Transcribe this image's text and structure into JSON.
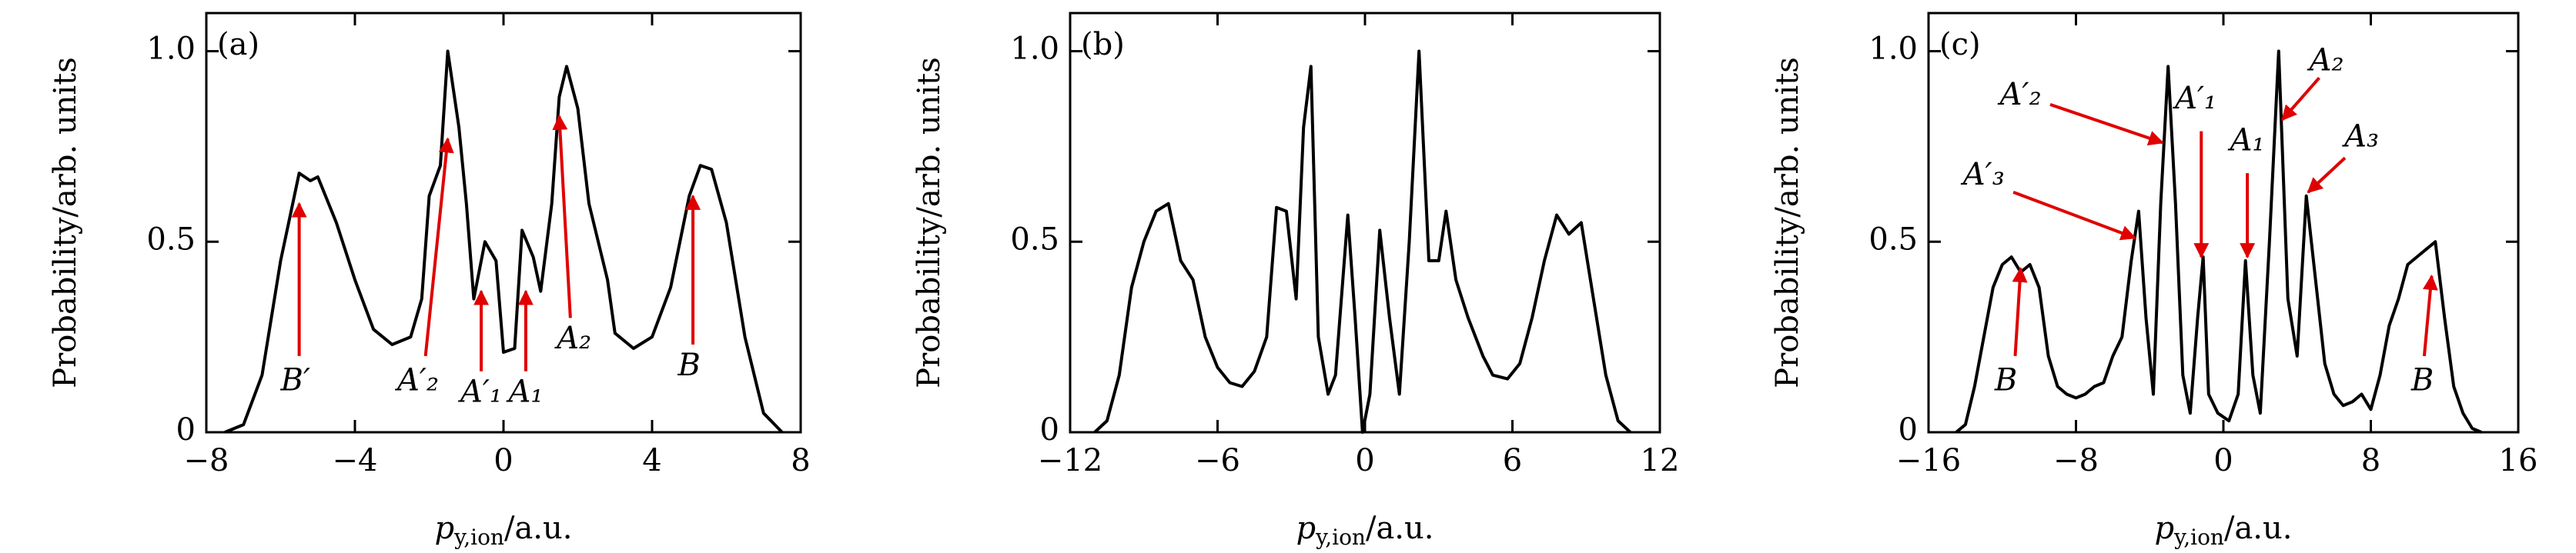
{
  "chart_data": [
    {
      "type": "line",
      "panel_label": "(a)",
      "y_label": "Probability/arb. units",
      "x_label": {
        "symbol": "p",
        "subscript": "y,ion",
        "unit": "/a.u."
      },
      "color": "#000000",
      "x": [
        -7.5,
        -7,
        -6.5,
        -6,
        -5.5,
        -5.2,
        -5,
        -4.5,
        -4,
        -3.5,
        -3,
        -2.5,
        -2.2,
        -2,
        -1.7,
        -1.5,
        -1.2,
        -1,
        -0.8,
        -0.5,
        -0.2,
        0,
        0.3,
        0.5,
        0.8,
        1,
        1.3,
        1.5,
        1.7,
        2,
        2.3,
        2.8,
        3,
        3.5,
        4,
        4.5,
        5,
        5.3,
        5.6,
        6,
        6.5,
        7,
        7.5
      ],
      "values": [
        0,
        0.02,
        0.15,
        0.45,
        0.68,
        0.66,
        0.67,
        0.55,
        0.4,
        0.27,
        0.23,
        0.25,
        0.35,
        0.62,
        0.7,
        1.0,
        0.8,
        0.6,
        0.35,
        0.5,
        0.45,
        0.21,
        0.22,
        0.53,
        0.46,
        0.37,
        0.6,
        0.88,
        0.96,
        0.85,
        0.6,
        0.4,
        0.26,
        0.22,
        0.25,
        0.38,
        0.62,
        0.7,
        0.69,
        0.55,
        0.25,
        0.05,
        0
      ],
      "xlim": [
        -8,
        8
      ],
      "ylim": [
        0,
        1.1
      ],
      "xticks": [
        {
          "value": -8,
          "label": "−8"
        },
        {
          "value": -4,
          "label": "−4"
        },
        0,
        4,
        8
      ],
      "yticks": [
        0,
        0.5,
        {
          "value": 1,
          "label": "1.0"
        }
      ],
      "annotations": [
        {
          "text": "B′",
          "arrow_color": "#e00000"
        },
        {
          "text": "A′₂",
          "arrow_color": "#e00000"
        },
        {
          "text": "A′₁",
          "arrow_color": "#e00000"
        },
        {
          "text": "A₁",
          "arrow_color": "#e00000"
        },
        {
          "text": "A₂",
          "arrow_color": "#e00000"
        },
        {
          "text": "B",
          "arrow_color": "#e00000"
        }
      ]
    },
    {
      "type": "line",
      "panel_label": "(b)",
      "y_label": "Probability/arb. units",
      "x_label": {
        "symbol": "p",
        "subscript": "y,ion",
        "unit": "/a.u."
      },
      "color": "#000000",
      "x": [
        -11,
        -10.5,
        -10,
        -9.5,
        -9,
        -8.5,
        -8,
        -7.5,
        -7,
        -6.5,
        -6,
        -5.5,
        -5,
        -4.5,
        -4,
        -3.6,
        -3.2,
        -2.8,
        -2.5,
        -2.2,
        -1.9,
        -1.5,
        -1.2,
        -0.7,
        -0.4,
        -0.1,
        0.2,
        0.6,
        1,
        1.4,
        1.8,
        2.2,
        2.6,
        3,
        3.3,
        3.7,
        4.2,
        4.8,
        5.2,
        5.8,
        6.3,
        6.8,
        7.3,
        7.8,
        8.3,
        8.8,
        9.3,
        9.8,
        10.3,
        10.8
      ],
      "values": [
        0,
        0.03,
        0.15,
        0.38,
        0.5,
        0.58,
        0.6,
        0.45,
        0.4,
        0.25,
        0.17,
        0.13,
        0.12,
        0.16,
        0.25,
        0.59,
        0.58,
        0.35,
        0.8,
        0.96,
        0.25,
        0.1,
        0.15,
        0.57,
        0.3,
        0,
        0.1,
        0.53,
        0.3,
        0.1,
        0.5,
        1.0,
        0.45,
        0.45,
        0.58,
        0.4,
        0.3,
        0.2,
        0.15,
        0.14,
        0.18,
        0.3,
        0.45,
        0.57,
        0.52,
        0.55,
        0.35,
        0.15,
        0.03,
        0
      ],
      "xlim": [
        -12,
        12
      ],
      "ylim": [
        0,
        1.1
      ],
      "xticks": [
        {
          "value": -12,
          "label": "−12"
        },
        {
          "value": -6,
          "label": "−6"
        },
        0,
        6,
        12
      ],
      "yticks": [
        0,
        0.5,
        {
          "value": 1,
          "label": "1.0"
        }
      ],
      "annotations": []
    },
    {
      "type": "line",
      "panel_label": "(c)",
      "y_label": "Probability/arb. units",
      "x_label": {
        "symbol": "p",
        "subscript": "y,ion",
        "unit": "/a.u."
      },
      "color": "#000000",
      "x": [
        -14.5,
        -14,
        -13.5,
        -13,
        -12.5,
        -12,
        -11.5,
        -11,
        -10.5,
        -10,
        -9.5,
        -9,
        -8.5,
        -8,
        -7.5,
        -7,
        -6.5,
        -6,
        -5.5,
        -5,
        -4.6,
        -4.2,
        -3.8,
        -3.4,
        -3,
        -2.6,
        -2.2,
        -1.8,
        -1.4,
        -1.1,
        -0.8,
        -0.3,
        0.3,
        0.8,
        1.2,
        1.6,
        2,
        2.5,
        3,
        3.5,
        4,
        4.5,
        5,
        5.5,
        6,
        6.5,
        7,
        7.5,
        8,
        8.5,
        9,
        9.5,
        10,
        10.5,
        11,
        11.5,
        12,
        12.5,
        13,
        13.5,
        14
      ],
      "values": [
        0,
        0.02,
        0.12,
        0.25,
        0.38,
        0.44,
        0.46,
        0.42,
        0.44,
        0.38,
        0.2,
        0.12,
        0.1,
        0.09,
        0.1,
        0.12,
        0.13,
        0.2,
        0.25,
        0.45,
        0.58,
        0.3,
        0.1,
        0.6,
        0.96,
        0.6,
        0.15,
        0.05,
        0.3,
        0.46,
        0.1,
        0.05,
        0.03,
        0.1,
        0.45,
        0.15,
        0.05,
        0.5,
        1.0,
        0.35,
        0.2,
        0.62,
        0.4,
        0.18,
        0.1,
        0.07,
        0.08,
        0.1,
        0.06,
        0.15,
        0.28,
        0.35,
        0.44,
        0.46,
        0.48,
        0.5,
        0.3,
        0.12,
        0.05,
        0.01,
        0
      ],
      "xlim": [
        -16,
        16
      ],
      "ylim": [
        0,
        1.1
      ],
      "xticks": [
        {
          "value": -16,
          "label": "−16"
        },
        {
          "value": -8,
          "label": "−8"
        },
        0,
        8,
        16
      ],
      "yticks": [
        0,
        0.5,
        {
          "value": 1,
          "label": "1.0"
        }
      ],
      "annotations": [
        {
          "text": "A′₂",
          "arrow_color": "#e00000"
        },
        {
          "text": "A′₁",
          "arrow_color": "#e00000"
        },
        {
          "text": "A₁",
          "arrow_color": "#e00000"
        },
        {
          "text": "A₂",
          "arrow_color": "#e00000"
        },
        {
          "text": "A₃",
          "arrow_color": "#e00000"
        },
        {
          "text": "A′₃",
          "arrow_color": "#e00000"
        },
        {
          "text": "B",
          "arrow_color": "#e00000"
        },
        {
          "text": "B",
          "arrow_color": "#e00000"
        }
      ]
    }
  ]
}
